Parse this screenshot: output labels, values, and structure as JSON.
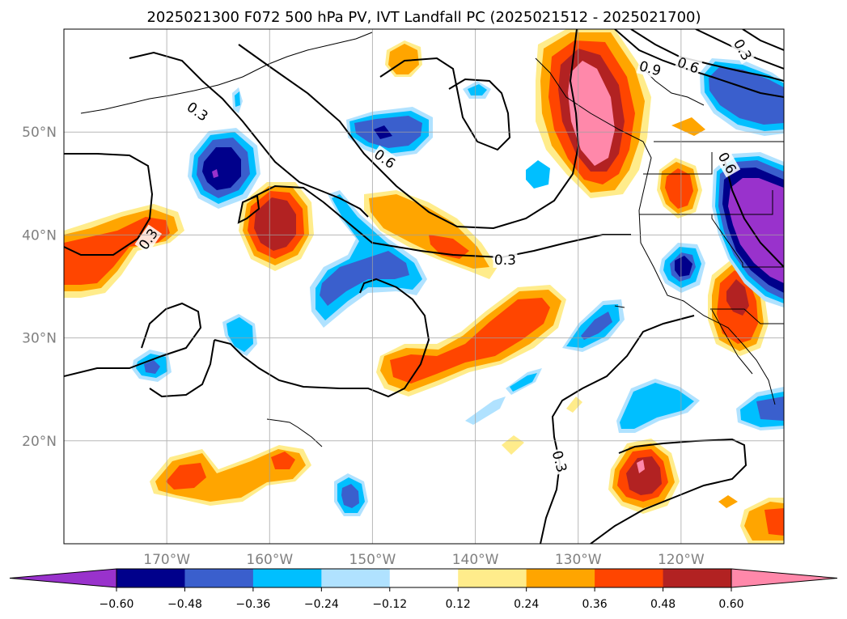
{
  "title": "2025021300 F072 500 hPa PV, IVT Landfall PC (2025021512 - 2025021700)",
  "map": {
    "extent": {
      "lon_min": -180,
      "lon_max": -110,
      "lat_min": 10,
      "lat_max": 60
    },
    "lat_ticks": [
      {
        "value": 50,
        "label": "50°N"
      },
      {
        "value": 40,
        "label": "40°N"
      },
      {
        "value": 30,
        "label": "30°N"
      },
      {
        "value": 20,
        "label": "20°N"
      }
    ],
    "lon_ticks": [
      {
        "value": -170,
        "label": "170°W"
      },
      {
        "value": -160,
        "label": "160°W"
      },
      {
        "value": -150,
        "label": "150°W"
      },
      {
        "value": -140,
        "label": "140°W"
      },
      {
        "value": -130,
        "label": "130°W"
      },
      {
        "value": -120,
        "label": "120°W"
      }
    ],
    "contour_labels": [
      {
        "text": "0.3",
        "lon": -167.0,
        "lat": 52.0,
        "angle": 35
      },
      {
        "text": "0.3",
        "lon": -171.8,
        "lat": 39.6,
        "angle": -55
      },
      {
        "text": "0.6",
        "lon": -148.8,
        "lat": 47.4,
        "angle": 35
      },
      {
        "text": "0.3",
        "lon": -137.1,
        "lat": 37.6,
        "angle": 0
      },
      {
        "text": "0.9",
        "lon": -123.0,
        "lat": 56.2,
        "angle": 15
      },
      {
        "text": "0.6",
        "lon": -119.3,
        "lat": 56.5,
        "angle": 20
      },
      {
        "text": "0.3",
        "lon": -114.0,
        "lat": 58.0,
        "angle": 60
      },
      {
        "text": "0.6",
        "lon": -115.5,
        "lat": 47.0,
        "angle": 60
      },
      {
        "text": "0.3",
        "lon": -131.8,
        "lat": 18.0,
        "angle": 75
      }
    ]
  },
  "colorbar": {
    "colors": [
      "#9932cc",
      "#00008b",
      "#3a5fcd",
      "#00bfff",
      "#b0e2ff",
      "#ffffff",
      "#ffec8b",
      "#ffa500",
      "#ff4500",
      "#b22222",
      "#ff88aa"
    ],
    "tick_labels": [
      "−0.60",
      "−0.48",
      "−0.36",
      "−0.24",
      "−0.12",
      "0.12",
      "0.24",
      "0.36",
      "0.48",
      "0.60"
    ]
  }
}
